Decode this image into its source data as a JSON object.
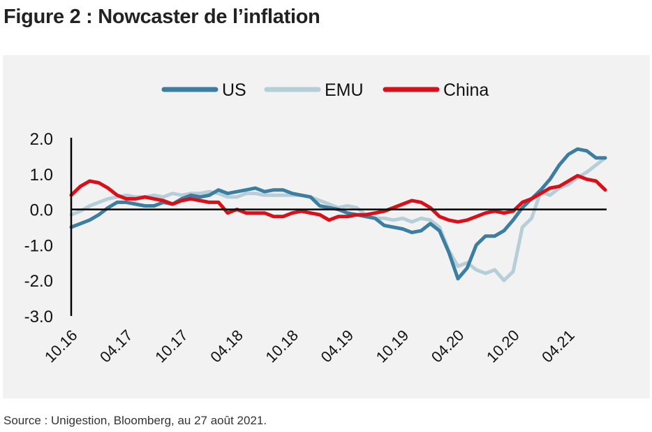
{
  "figure": {
    "title": "Figure 2 : Nowcaster de l’inflation",
    "source": "Source : Unigestion, Bloomberg, au 27 août 2021."
  },
  "chart_data": {
    "type": "line",
    "title": "",
    "xlabel": "",
    "ylabel": "",
    "ylim": [
      -3.0,
      2.0
    ],
    "yticks": [
      "2.0",
      "1.0",
      "0.0",
      "-1.0",
      "-2.0",
      "-3.0"
    ],
    "ytick_values": [
      2.0,
      1.0,
      0.0,
      -1.0,
      -2.0,
      -3.0
    ],
    "x": [
      "10.16",
      "11.16",
      "12.16",
      "01.17",
      "02.17",
      "03.17",
      "04.17",
      "05.17",
      "06.17",
      "07.17",
      "08.17",
      "09.17",
      "10.17",
      "11.17",
      "12.17",
      "01.18",
      "02.18",
      "03.18",
      "04.18",
      "05.18",
      "06.18",
      "07.18",
      "08.18",
      "09.18",
      "10.18",
      "11.18",
      "12.18",
      "01.19",
      "02.19",
      "03.19",
      "04.19",
      "05.19",
      "06.19",
      "07.19",
      "08.19",
      "09.19",
      "10.19",
      "11.19",
      "12.19",
      "01.20",
      "02.20",
      "03.20",
      "04.20",
      "05.20",
      "06.20",
      "07.20",
      "08.20",
      "09.20",
      "10.20",
      "11.20",
      "12.20",
      "01.21",
      "02.21",
      "03.21",
      "04.21",
      "05.21",
      "06.21",
      "07.21",
      "08.21"
    ],
    "xtick_labels": [
      "10.16",
      "04.17",
      "10.17",
      "04.18",
      "10.18",
      "04.19",
      "10.19",
      "04.20",
      "10.20",
      "04.21"
    ],
    "legend_position": "top",
    "grid": false,
    "series": [
      {
        "name": "US",
        "color": "#3b7ea1",
        "values": [
          -0.5,
          -0.4,
          -0.3,
          -0.15,
          0.05,
          0.2,
          0.2,
          0.15,
          0.1,
          0.1,
          0.2,
          0.15,
          0.3,
          0.4,
          0.35,
          0.4,
          0.55,
          0.45,
          0.5,
          0.55,
          0.6,
          0.5,
          0.55,
          0.55,
          0.45,
          0.4,
          0.35,
          0.1,
          0.05,
          0.0,
          -0.1,
          -0.15,
          -0.2,
          -0.25,
          -0.45,
          -0.5,
          -0.55,
          -0.65,
          -0.6,
          -0.4,
          -0.6,
          -1.2,
          -1.95,
          -1.65,
          -1.0,
          -0.75,
          -0.75,
          -0.6,
          -0.3,
          0.05,
          0.3,
          0.55,
          0.85,
          1.25,
          1.55,
          1.7,
          1.65,
          1.45,
          1.45
        ]
      },
      {
        "name": "EMU",
        "color": "#b5ced8",
        "values": [
          -0.15,
          -0.05,
          0.1,
          0.2,
          0.3,
          0.35,
          0.4,
          0.35,
          0.35,
          0.4,
          0.35,
          0.45,
          0.4,
          0.45,
          0.45,
          0.5,
          0.45,
          0.35,
          0.35,
          0.45,
          0.45,
          0.4,
          0.4,
          0.4,
          0.4,
          0.4,
          0.35,
          0.25,
          0.15,
          0.05,
          0.1,
          0.05,
          -0.15,
          -0.25,
          -0.25,
          -0.3,
          -0.25,
          -0.35,
          -0.25,
          -0.3,
          -0.5,
          -1.15,
          -1.6,
          -1.5,
          -1.7,
          -1.8,
          -1.7,
          -2.0,
          -1.75,
          -0.5,
          -0.25,
          0.5,
          0.4,
          0.6,
          0.7,
          0.9,
          1.05,
          1.25,
          1.45
        ]
      },
      {
        "name": "China",
        "color": "#d8101a",
        "values": [
          0.4,
          0.65,
          0.8,
          0.75,
          0.6,
          0.4,
          0.3,
          0.3,
          0.35,
          0.3,
          0.25,
          0.15,
          0.25,
          0.3,
          0.25,
          0.2,
          0.2,
          -0.1,
          0.0,
          -0.1,
          -0.1,
          -0.1,
          -0.2,
          -0.2,
          -0.1,
          -0.05,
          -0.1,
          -0.15,
          -0.3,
          -0.2,
          -0.2,
          -0.15,
          -0.15,
          -0.1,
          -0.05,
          0.05,
          0.15,
          0.25,
          0.2,
          0.05,
          -0.2,
          -0.3,
          -0.35,
          -0.3,
          -0.2,
          -0.1,
          -0.05,
          -0.1,
          -0.05,
          0.2,
          0.3,
          0.45,
          0.6,
          0.65,
          0.8,
          0.95,
          0.85,
          0.8,
          0.55
        ]
      }
    ]
  }
}
